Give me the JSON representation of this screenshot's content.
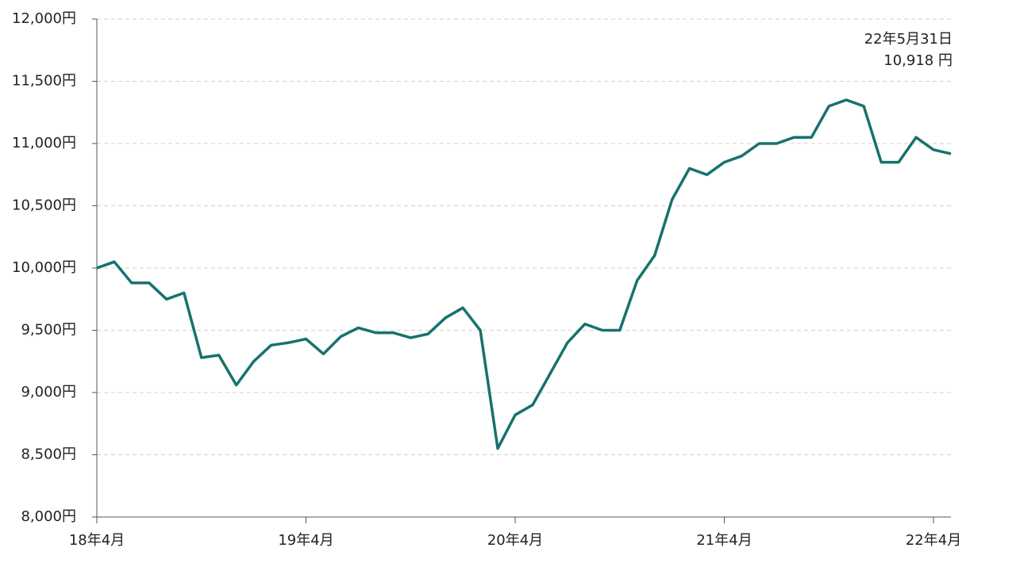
{
  "chart_data": {
    "type": "line",
    "x": [
      "2018-04",
      "2018-05",
      "2018-06",
      "2018-07",
      "2018-08",
      "2018-09",
      "2018-10",
      "2018-11",
      "2018-12",
      "2019-01",
      "2019-02",
      "2019-03",
      "2019-04",
      "2019-05",
      "2019-06",
      "2019-07",
      "2019-08",
      "2019-09",
      "2019-10",
      "2019-11",
      "2019-12",
      "2020-01",
      "2020-02",
      "2020-03",
      "2020-04",
      "2020-05",
      "2020-06",
      "2020-07",
      "2020-08",
      "2020-09",
      "2020-10",
      "2020-11",
      "2020-12",
      "2021-01",
      "2021-02",
      "2021-03",
      "2021-04",
      "2021-05",
      "2021-06",
      "2021-07",
      "2021-08",
      "2021-09",
      "2021-10",
      "2021-11",
      "2021-12",
      "2022-01",
      "2022-02",
      "2022-03",
      "2022-04",
      "2022-05"
    ],
    "series": [
      {
        "color": "#17726e",
        "values": [
          10000,
          10050,
          9880,
          9880,
          9750,
          9800,
          9280,
          9300,
          9060,
          9250,
          9380,
          9400,
          9430,
          9310,
          9450,
          9520,
          9480,
          9480,
          9440,
          9470,
          9600,
          9680,
          9500,
          8550,
          8820,
          8900,
          9150,
          9400,
          9550,
          9500,
          9500,
          9900,
          10100,
          10550,
          10800,
          10750,
          10850,
          10900,
          11000,
          11000,
          11050,
          11050,
          11300,
          11350,
          11300,
          10850,
          10850,
          11050,
          10950,
          10918
        ]
      }
    ],
    "xlim": [
      "2018-04",
      "2022-05"
    ],
    "xticks": [
      {
        "value": "2018-04",
        "label": "18年4月"
      },
      {
        "value": "2019-04",
        "label": "19年4月"
      },
      {
        "value": "2020-04",
        "label": "20年4月"
      },
      {
        "value": "2021-04",
        "label": "21年4月"
      },
      {
        "value": "2022-04",
        "label": "22年4月"
      }
    ],
    "ylim": [
      8000,
      12000
    ],
    "yticks": [
      {
        "value": 8000,
        "label": "8,000円"
      },
      {
        "value": 8500,
        "label": "8,500円"
      },
      {
        "value": 9000,
        "label": "9,000円"
      },
      {
        "value": 9500,
        "label": "9,500円"
      },
      {
        "value": 10000,
        "label": "10,000円"
      },
      {
        "value": 10500,
        "label": "10,500円"
      },
      {
        "value": 11000,
        "label": "11,000円"
      },
      {
        "value": 11500,
        "label": "11,500円"
      },
      {
        "value": 12000,
        "label": "12,000円"
      }
    ],
    "grid": true,
    "annotations": [
      "22年5月31日",
      "10,918 円"
    ]
  }
}
